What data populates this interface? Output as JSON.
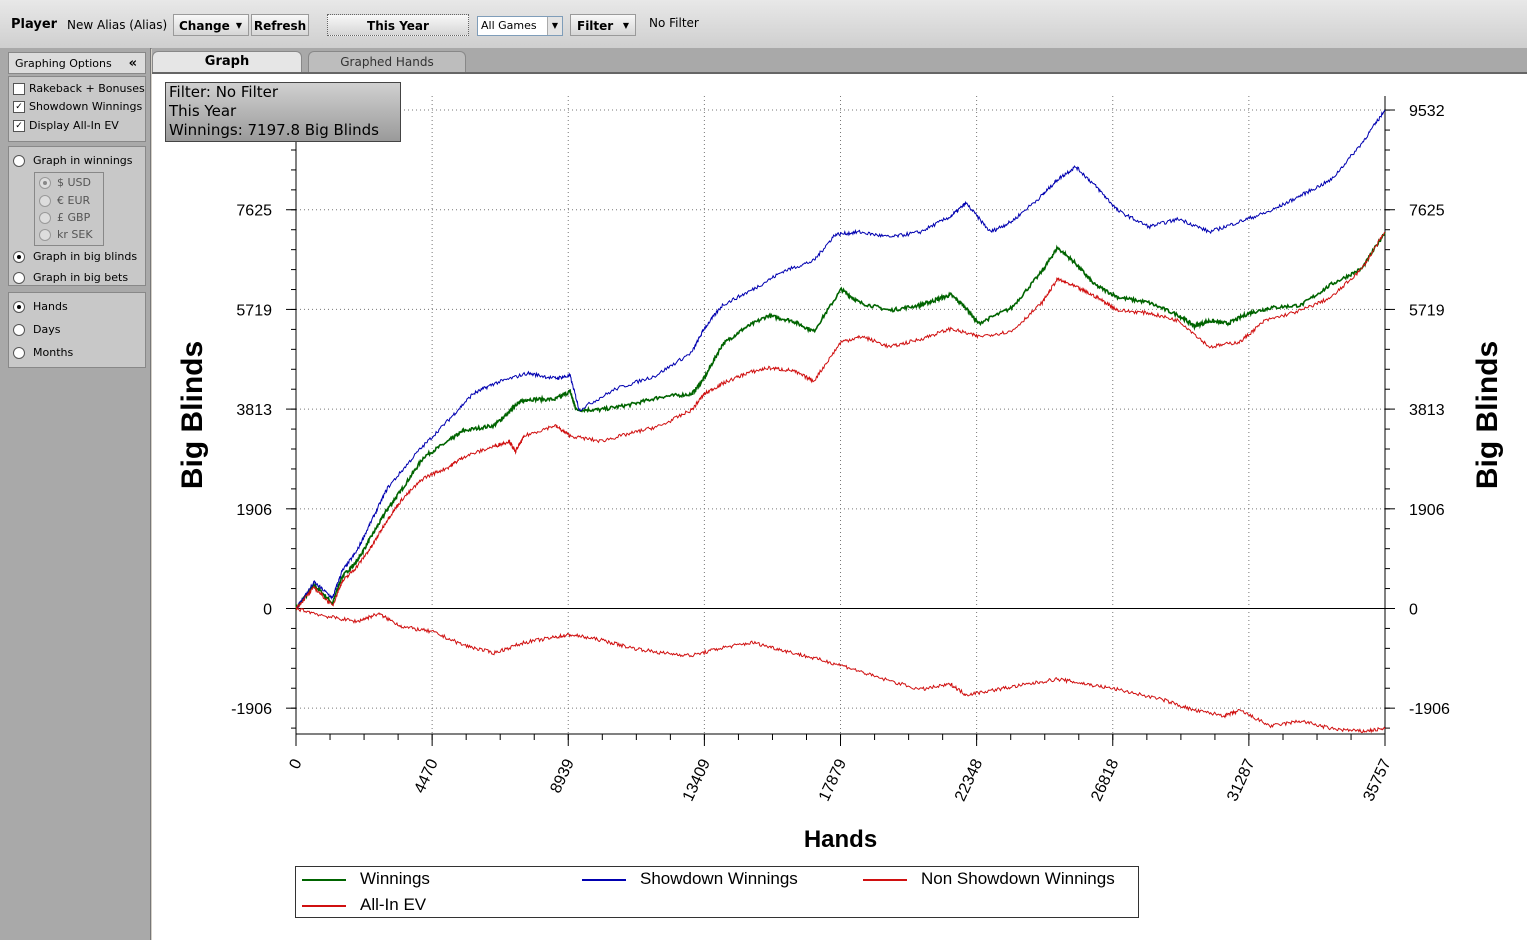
{
  "toolbar": {
    "player_label": "Player",
    "alias": "New Alias (Alias)",
    "change_label": "Change",
    "refresh_label": "Refresh",
    "period_label": "This Year",
    "games_value": "All Games",
    "filter_label": "Filter",
    "filter_status": "No Filter"
  },
  "sidebar": {
    "header": "Graphing Options",
    "collapse_glyph": "«",
    "checkboxes": [
      {
        "label": "Rakeback + Bonuses",
        "checked": false
      },
      {
        "label": "Showdown Winnings",
        "checked": true
      },
      {
        "label": "Display All-In EV",
        "checked": true
      }
    ],
    "graph_modes": [
      {
        "label": "Graph in winnings",
        "selected": false
      },
      {
        "label": "Graph in big blinds",
        "selected": true
      },
      {
        "label": "Graph in big bets",
        "selected": false
      }
    ],
    "currencies": [
      {
        "label": "$ USD",
        "selected": true
      },
      {
        "label": "€ EUR",
        "selected": false
      },
      {
        "label": "£ GBP",
        "selected": false
      },
      {
        "label": "kr SEK",
        "selected": false
      }
    ],
    "axis_units": [
      {
        "label": "Hands",
        "selected": true
      },
      {
        "label": "Days",
        "selected": false
      },
      {
        "label": "Months",
        "selected": false
      }
    ]
  },
  "tabs": [
    {
      "label": "Graph",
      "active": true
    },
    {
      "label": "Graphed Hands",
      "active": false
    }
  ],
  "infobox": {
    "line1": "Filter: No Filter",
    "line2": "This Year",
    "line3": "Winnings: 7197.8 Big Blinds"
  },
  "chart_data": {
    "type": "line",
    "xlabel": "Hands",
    "ylabel": "Big Blinds",
    "xlim": [
      0,
      35757
    ],
    "ylim": [
      -2400,
      9800
    ],
    "x_ticks": [
      0,
      4470,
      8939,
      13409,
      17879,
      22348,
      26818,
      31287,
      35757
    ],
    "y_ticks": [
      -1906,
      0,
      1906,
      3813,
      5719,
      7625,
      9532
    ],
    "grid": true,
    "legend_position": "bottom",
    "series": [
      {
        "name": "Winnings",
        "color": "#006400",
        "x": [
          0,
          600,
          1200,
          1500,
          2000,
          2500,
          3000,
          3500,
          4200,
          5000,
          5500,
          6500,
          7000,
          7200,
          7600,
          8500,
          9000,
          9200,
          10000,
          11000,
          12000,
          13000,
          13400,
          14000,
          14700,
          15500,
          16300,
          17000,
          17900,
          18500,
          19500,
          20500,
          21000,
          21500,
          22000,
          22400,
          23500,
          24500,
          25000,
          25600,
          26200,
          27000,
          28000,
          29000,
          29500,
          30000,
          30600,
          31300,
          32000,
          33000,
          34000,
          35000,
          35757
        ],
        "y": [
          0,
          450,
          100,
          600,
          900,
          1400,
          1900,
          2300,
          2900,
          3200,
          3400,
          3500,
          3750,
          3900,
          4000,
          4000,
          4150,
          3800,
          3800,
          3900,
          4050,
          4100,
          4400,
          5050,
          5350,
          5600,
          5500,
          5300,
          6100,
          5850,
          5700,
          5800,
          5900,
          6000,
          5750,
          5450,
          5750,
          6450,
          6900,
          6600,
          6200,
          5950,
          5850,
          5600,
          5400,
          5500,
          5450,
          5650,
          5750,
          5800,
          6200,
          6500,
          7198
        ]
      },
      {
        "name": "Showdown Winnings",
        "color": "#0000b0",
        "x": [
          0,
          600,
          1200,
          1500,
          2000,
          2500,
          3000,
          4000,
          5000,
          5800,
          6500,
          7600,
          8500,
          9000,
          9300,
          10500,
          11800,
          13000,
          13400,
          14000,
          15000,
          16000,
          17000,
          17700,
          18500,
          19500,
          20500,
          21500,
          22000,
          22800,
          23500,
          24500,
          25000,
          25600,
          26300,
          27000,
          28000,
          29000,
          30000,
          31000,
          32000,
          33000,
          34000,
          35000,
          35757
        ],
        "y": [
          0,
          500,
          200,
          700,
          1100,
          1700,
          2300,
          3000,
          3600,
          4100,
          4300,
          4500,
          4400,
          4450,
          3800,
          4200,
          4450,
          4900,
          5350,
          5800,
          6100,
          6450,
          6650,
          7150,
          7200,
          7100,
          7200,
          7500,
          7750,
          7200,
          7400,
          7900,
          8200,
          8450,
          8050,
          7600,
          7300,
          7450,
          7200,
          7400,
          7600,
          7900,
          8200,
          8900,
          9532
        ]
      },
      {
        "name": "Non Showdown Winnings",
        "color": "#d01010",
        "x": [
          0,
          600,
          1200,
          1500,
          2000,
          2500,
          3000,
          3500,
          4200,
          5000,
          5500,
          6500,
          7000,
          7200,
          7500,
          8500,
          9000,
          10000,
          11000,
          12000,
          13000,
          13400,
          14000,
          14800,
          15500,
          16300,
          17000,
          17900,
          18600,
          19500,
          20500,
          21500,
          22400,
          23500,
          24500,
          25000,
          25600,
          26300,
          27000,
          28000,
          29000,
          30000,
          31000,
          31800,
          33000,
          34000,
          35000,
          35757
        ],
        "y": [
          0,
          400,
          50,
          500,
          800,
          1200,
          1700,
          2100,
          2500,
          2700,
          2900,
          3100,
          3200,
          3000,
          3300,
          3500,
          3300,
          3200,
          3350,
          3500,
          3800,
          4100,
          4300,
          4500,
          4600,
          4550,
          4350,
          5100,
          5200,
          5000,
          5150,
          5350,
          5200,
          5300,
          5850,
          6300,
          6150,
          5950,
          5700,
          5650,
          5500,
          5000,
          5100,
          5500,
          5700,
          5950,
          6500,
          7198
        ]
      },
      {
        "name": "All-In EV",
        "color": "#d01010",
        "x": [
          0,
          1000,
          2000,
          2700,
          3500,
          4500,
          5500,
          6500,
          7500,
          8500,
          9000,
          10000,
          11000,
          12000,
          13000,
          14000,
          15000,
          16000,
          17000,
          18000,
          19000,
          20500,
          21500,
          22000,
          23000,
          24000,
          25000,
          26000,
          27000,
          28500,
          29500,
          30500,
          31000,
          32000,
          33000,
          34000,
          35000,
          35757
        ],
        "y": [
          0,
          -150,
          -250,
          -100,
          -350,
          -450,
          -700,
          -850,
          -650,
          -550,
          -500,
          -600,
          -750,
          -850,
          -900,
          -750,
          -650,
          -800,
          -950,
          -1100,
          -1300,
          -1550,
          -1450,
          -1650,
          -1550,
          -1450,
          -1350,
          -1450,
          -1550,
          -1750,
          -1950,
          -2050,
          -1950,
          -2250,
          -2150,
          -2300,
          -2350,
          -2300
        ]
      }
    ]
  }
}
